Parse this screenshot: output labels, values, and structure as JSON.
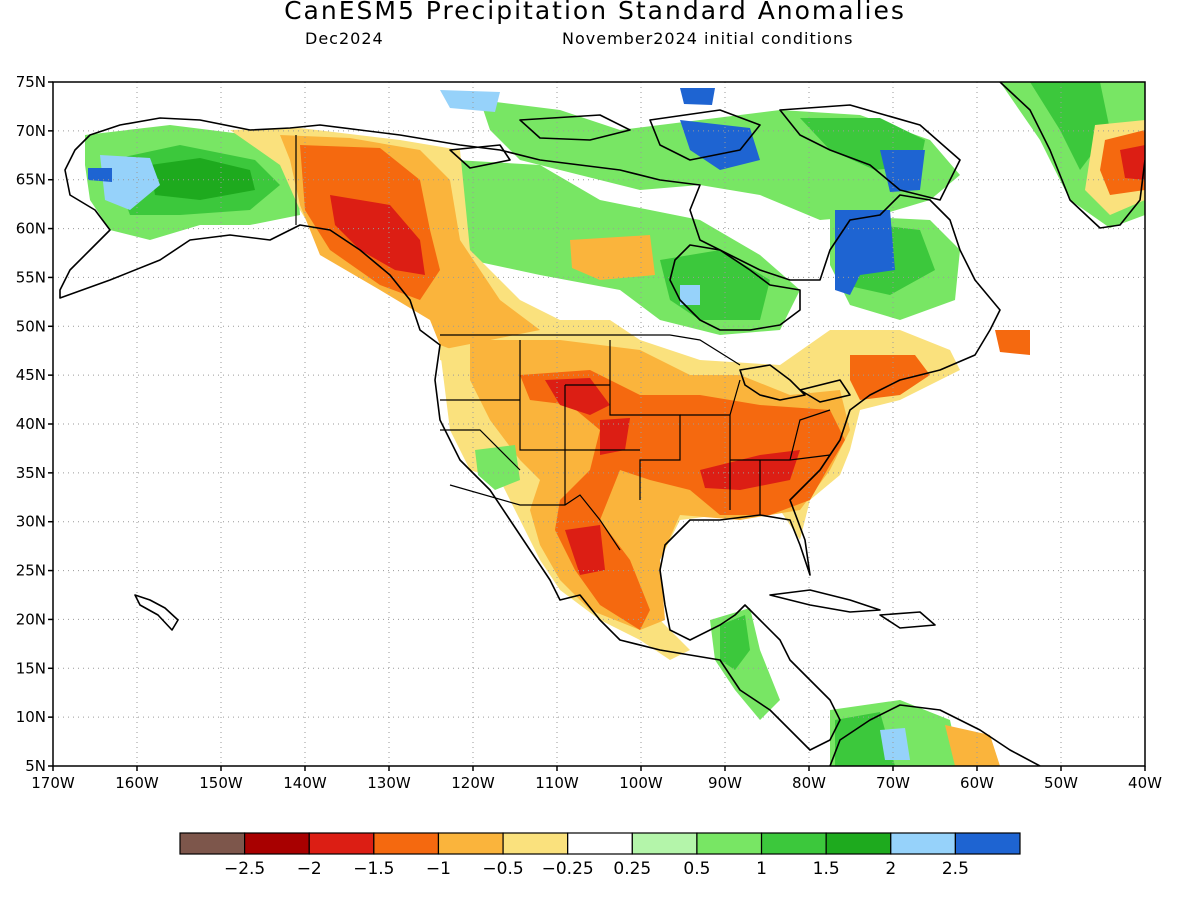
{
  "title": "CanESM5 Precipitation Standard Anomalies",
  "subtitle_left": "Dec2024",
  "subtitle_right": "November2024 initial conditions",
  "map": {
    "lon_range": [
      -170,
      -40
    ],
    "lat_range": [
      5,
      75
    ],
    "lon_ticks": [
      "170W",
      "160W",
      "150W",
      "140W",
      "130W",
      "120W",
      "110W",
      "100W",
      "90W",
      "80W",
      "70W",
      "60W",
      "50W",
      "40W"
    ],
    "lat_ticks": [
      "75N",
      "70N",
      "65N",
      "60N",
      "55N",
      "50N",
      "45N",
      "40N",
      "35N",
      "30N",
      "25N",
      "20N",
      "15N",
      "10N",
      "5N"
    ],
    "grid": "dotted"
  },
  "colorbar": {
    "colors": [
      "#7d564b",
      "#a80000",
      "#dc1e14",
      "#f5690f",
      "#fab43c",
      "#fae17d",
      "#ffffff",
      "#b4f5aa",
      "#78e664",
      "#3cc83c",
      "#1eaa1e",
      "#96d2fa",
      "#1e64d2"
    ],
    "labels": [
      "−2.5",
      "−2",
      "−1.5",
      "−1",
      "−0.5",
      "−0.25",
      "0.25",
      "0.5",
      "1",
      "1.5",
      "2",
      "2.5"
    ]
  }
}
